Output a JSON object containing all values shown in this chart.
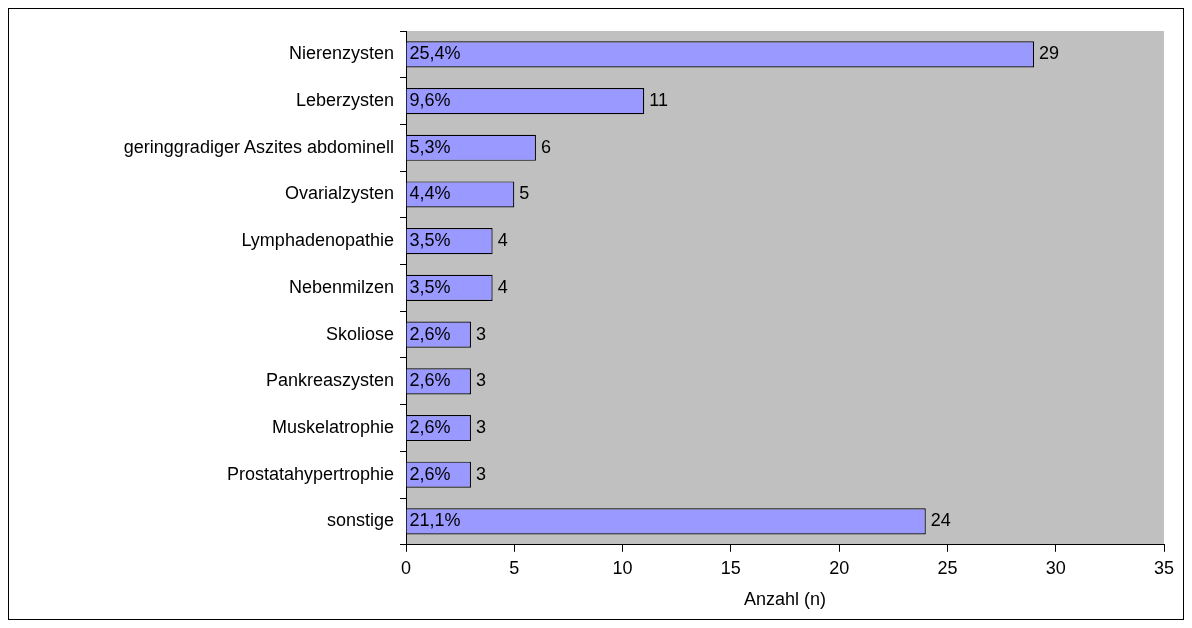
{
  "chart_data": {
    "type": "bar",
    "orientation": "horizontal",
    "categories": [
      "Nierenzysten",
      "Leberzysten",
      "geringgradiger Aszites abdominell",
      "Ovarialzysten",
      "Lymphadenopathie",
      "Nebenmilzen",
      "Skoliose",
      "Pankreaszysten",
      "Muskelatrophie",
      "Prostatahypertrophie",
      "sonstige"
    ],
    "values": [
      29,
      11,
      6,
      5,
      4,
      4,
      3,
      3,
      3,
      3,
      24
    ],
    "annotations": [
      "25,4%",
      "9,6%",
      "5,3%",
      "4,4%",
      "3,5%",
      "3,5%",
      "2,6%",
      "2,6%",
      "2,6%",
      "2,6%",
      "21,1%"
    ],
    "data_labels": true,
    "color": "#9999ff",
    "xlabel": "Anzahl (n)",
    "xlim": [
      0,
      35
    ],
    "xticks": [
      0,
      5,
      10,
      15,
      20,
      25,
      30,
      35
    ],
    "grid": false,
    "legend": false
  }
}
